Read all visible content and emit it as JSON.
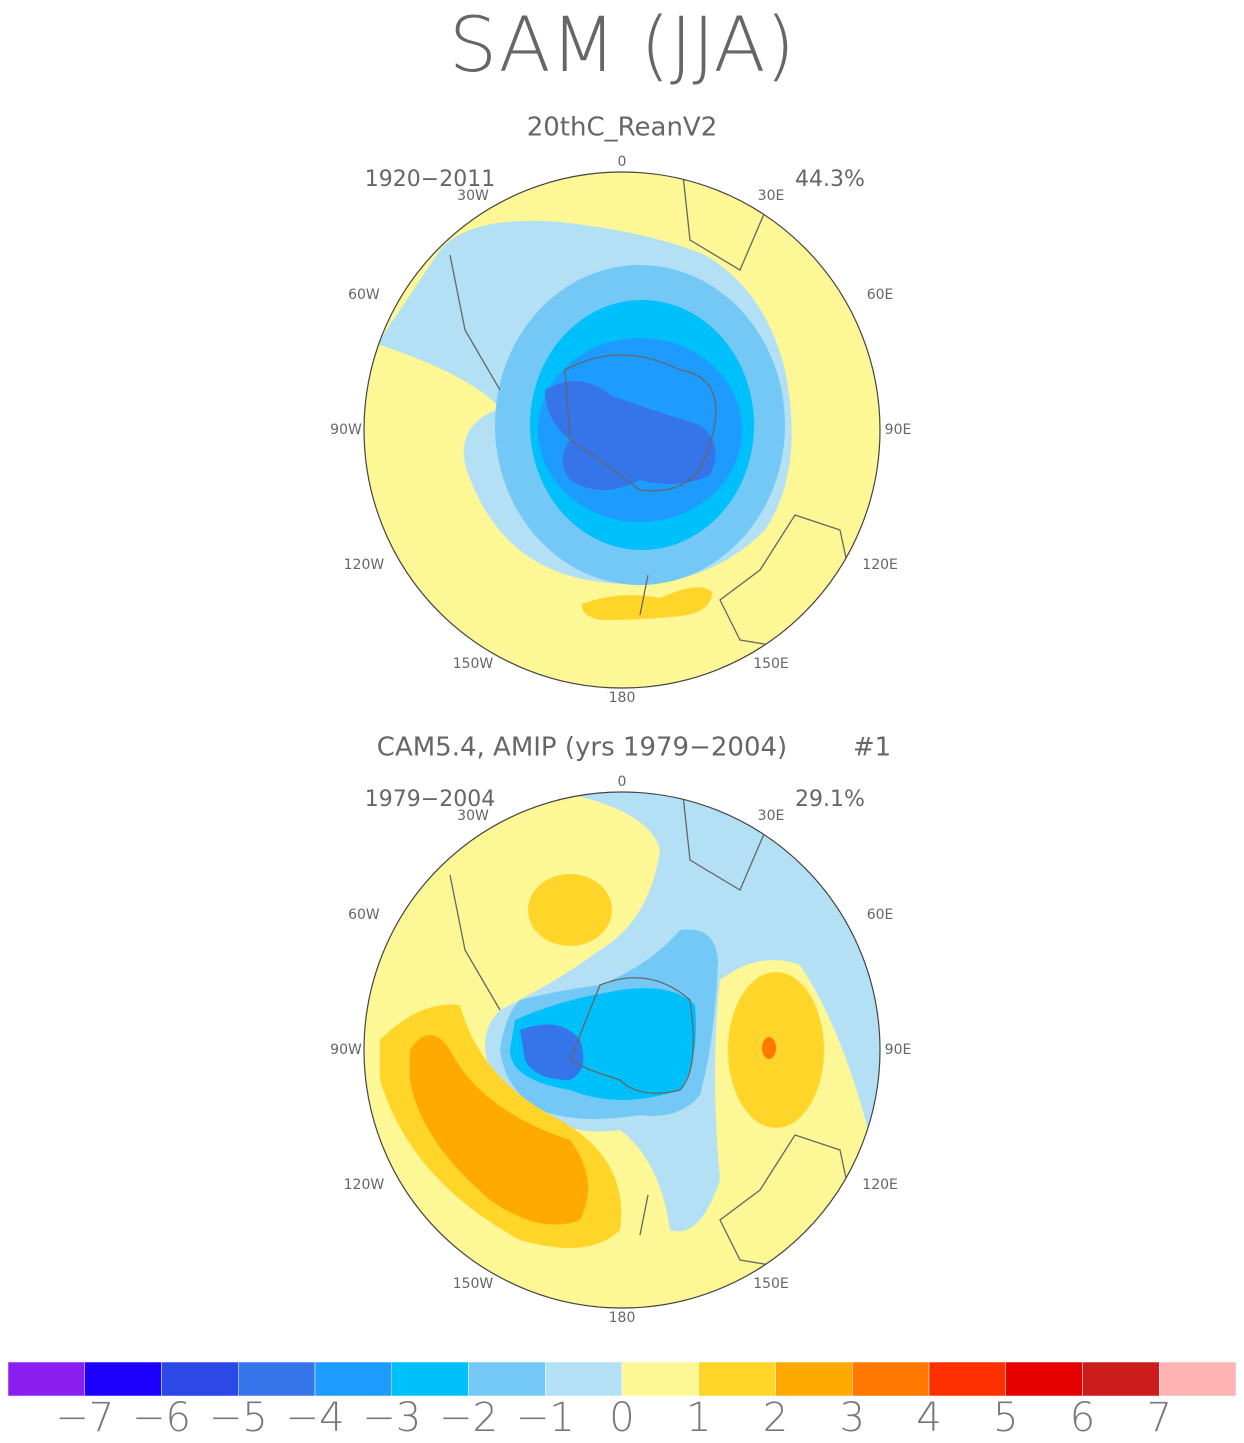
{
  "title": "SAM (JJA)",
  "panels": [
    {
      "subtitle": "20thC_ReanV2",
      "period": "1920−2011",
      "variance": "44.3%"
    },
    {
      "subtitle": "CAM5.4, AMIP (yrs 1979−2004)",
      "run": "#1",
      "period": "1979−2004",
      "variance": "29.1%"
    }
  ],
  "longitude_labels": [
    "0",
    "30E",
    "60E",
    "90E",
    "120E",
    "150E",
    "180",
    "150W",
    "120W",
    "90W",
    "60W",
    "30W"
  ],
  "colorbar": {
    "colors": [
      "#8a1ef0",
      "#1e00ff",
      "#2c48e6",
      "#3575e9",
      "#1e9bff",
      "#00c0fb",
      "#73c8f5",
      "#b4e0f5",
      "#fef796",
      "#ffd52a",
      "#ffaa00",
      "#ff7800",
      "#ff3000",
      "#e60000",
      "#cc1c1c",
      "#ffb4b4"
    ],
    "labels": [
      "−7",
      "−6",
      "−5",
      "−4",
      "−3",
      "−2",
      "−1",
      "0",
      "1",
      "2",
      "3",
      "4",
      "5",
      "6",
      "7"
    ]
  }
}
